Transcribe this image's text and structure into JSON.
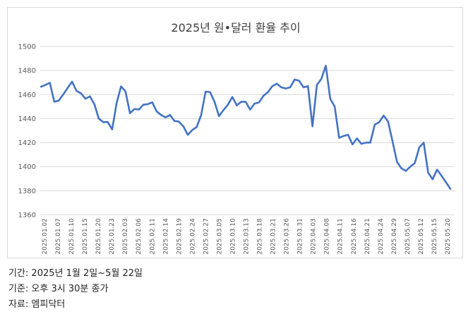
{
  "chart_data": {
    "type": "line",
    "title": "2025년 원•달러 환율 추이",
    "xlabel": "",
    "ylabel": "",
    "ylim": [
      1360,
      1500
    ],
    "yticks": [
      1360,
      1380,
      1400,
      1420,
      1440,
      1460,
      1480,
      1500
    ],
    "grid": true,
    "legend": "none",
    "x_tick_labels": [
      "2025.01.02",
      "2025.01.07",
      "2025.01.10",
      "2025.01.15",
      "2025.01.20",
      "2025.01.23",
      "2025.02.03",
      "2025.02.06",
      "2025.02.11",
      "2025.02.14",
      "2025.02.19",
      "2025.02.24",
      "2025.02.27",
      "2025.03.05",
      "2025.03.10",
      "2025.03.13",
      "2025.03.18",
      "2025.03.21",
      "2025.03.26",
      "2025.03.31",
      "2025.04.03",
      "2025.04.08",
      "2025.04.11",
      "2025.04.16",
      "2025.04.21",
      "2025.04.24",
      "2025.04.29",
      "2025.05.07",
      "2025.05.12",
      "2025.05.15",
      "2025.05.20"
    ],
    "series": [
      {
        "color": "#4472c4",
        "values": [
          1466.5,
          1468.0,
          1469.8,
          1454.0,
          1455.0,
          1460.0,
          1465.5,
          1470.7,
          1463.0,
          1461.0,
          1456.5,
          1458.5,
          1452.0,
          1440.0,
          1437.0,
          1437.2,
          1431.0,
          1452.8,
          1466.8,
          1462.5,
          1444.5,
          1448.0,
          1447.5,
          1451.5,
          1452.0,
          1453.5,
          1446.0,
          1443.0,
          1441.0,
          1443.0,
          1438.0,
          1437.5,
          1433.5,
          1426.5,
          1430.5,
          1433.0,
          1443.0,
          1462.5,
          1462.0,
          1454.0,
          1442.0,
          1447.0,
          1451.5,
          1458.0,
          1451.0,
          1454.0,
          1454.0,
          1447.5,
          1452.5,
          1453.5,
          1459.0,
          1462.0,
          1467.0,
          1469.0,
          1466.0,
          1465.0,
          1466.0,
          1472.5,
          1471.5,
          1466.0,
          1467.0,
          1433.5,
          1468.0,
          1473.0,
          1484.0,
          1456.5,
          1450.0,
          1424.0,
          1425.5,
          1426.5,
          1418.5,
          1423.5,
          1419.0,
          1420.0,
          1420.0,
          1435.0,
          1437.0,
          1442.5,
          1437.5,
          1421.0,
          1404.0,
          1398.5,
          1396.5,
          1400.0,
          1403.0,
          1416.0,
          1420.0,
          1395.0,
          1389.5,
          1397.5,
          1392.5,
          1387.0,
          1381.5
        ]
      }
    ]
  },
  "notes": {
    "period": "기간: 2025년 1월 2일~5월 22일",
    "basis": "기준: 오후 3시 30분 종가",
    "source": "자료: 엠피닥터"
  }
}
